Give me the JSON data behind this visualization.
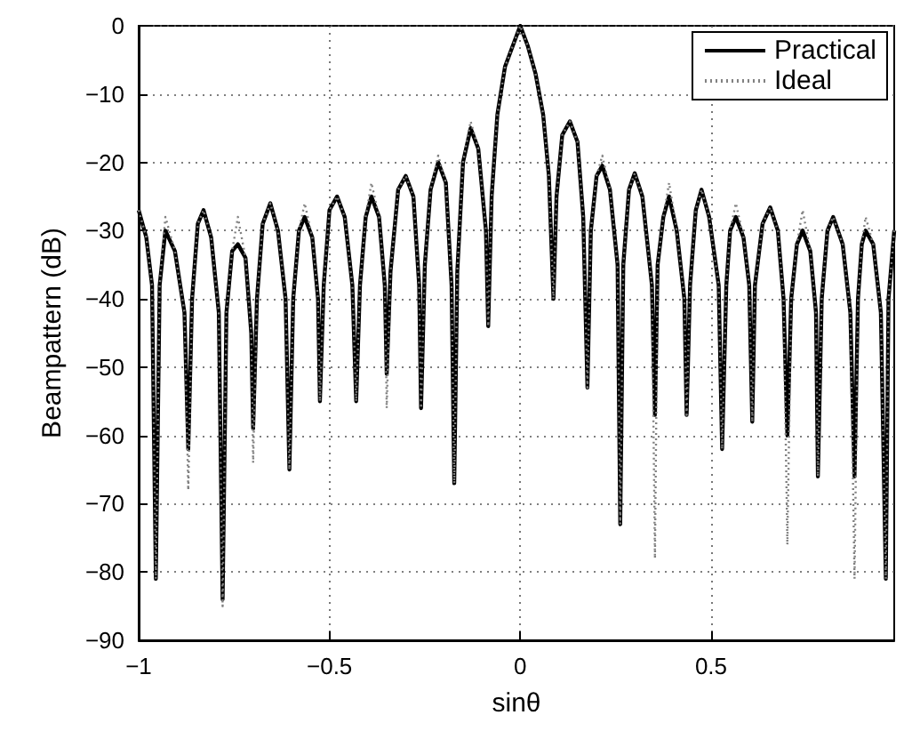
{
  "chart_data": {
    "type": "line",
    "xlabel": "sinθ",
    "ylabel": "Beampattern (dB)",
    "xlim": [
      -1,
      0.98
    ],
    "ylim": [
      -90,
      0
    ],
    "xticks": [
      -1,
      -0.5,
      0,
      0.5
    ],
    "yticks": [
      -90,
      -80,
      -70,
      -60,
      -50,
      -40,
      -30,
      -20,
      -10,
      0
    ],
    "grid": true,
    "legend": "top right",
    "marker": "none",
    "x": [
      -1,
      -0.98,
      -0.965,
      -0.955,
      -0.945,
      -0.93,
      -0.905,
      -0.88,
      -0.87,
      -0.86,
      -0.845,
      -0.83,
      -0.81,
      -0.79,
      -0.78,
      -0.77,
      -0.755,
      -0.74,
      -0.72,
      -0.705,
      -0.7,
      -0.69,
      -0.675,
      -0.655,
      -0.635,
      -0.615,
      -0.605,
      -0.595,
      -0.58,
      -0.565,
      -0.545,
      -0.53,
      -0.525,
      -0.515,
      -0.5,
      -0.48,
      -0.46,
      -0.44,
      -0.43,
      -0.42,
      -0.405,
      -0.39,
      -0.37,
      -0.355,
      -0.35,
      -0.34,
      -0.32,
      -0.3,
      -0.28,
      -0.265,
      -0.26,
      -0.25,
      -0.235,
      -0.215,
      -0.195,
      -0.18,
      -0.173,
      -0.165,
      -0.15,
      -0.13,
      -0.11,
      -0.09,
      -0.084,
      -0.075,
      -0.06,
      -0.04,
      -0.02,
      0,
      0.02,
      0.04,
      0.06,
      0.075,
      0.087,
      0.095,
      0.11,
      0.13,
      0.15,
      0.165,
      0.176,
      0.185,
      0.2,
      0.215,
      0.235,
      0.255,
      0.262,
      0.27,
      0.285,
      0.3,
      0.32,
      0.345,
      0.353,
      0.36,
      0.375,
      0.39,
      0.41,
      0.43,
      0.436,
      0.445,
      0.46,
      0.475,
      0.495,
      0.52,
      0.529,
      0.54,
      0.55,
      0.565,
      0.585,
      0.6,
      0.608,
      0.615,
      0.635,
      0.655,
      0.675,
      0.69,
      0.7,
      0.71,
      0.725,
      0.74,
      0.76,
      0.775,
      0.78,
      0.79,
      0.805,
      0.82,
      0.845,
      0.865,
      0.876,
      0.885,
      0.895,
      0.905,
      0.925,
      0.945,
      0.958,
      0.965,
      0.98
    ],
    "series": [
      {
        "name": "Ideal",
        "color": "#808080",
        "line_style": "dotted",
        "values": [
          -27,
          -31,
          -38,
          -81,
          -38,
          -28,
          -33,
          -42,
          -68,
          -40,
          -29,
          -27,
          -31,
          -42,
          -85,
          -42,
          -33,
          -28,
          -34,
          -45,
          -64,
          -40,
          -29,
          -26,
          -30,
          -40,
          -65,
          -40,
          -30,
          -26,
          -31,
          -40,
          -55,
          -38,
          -27,
          -25,
          -28,
          -38,
          -55,
          -38,
          -28,
          -23,
          -28,
          -38,
          -56,
          -36,
          -24,
          -22,
          -25,
          -38,
          -56,
          -35,
          -24,
          -19,
          -23,
          -38,
          -67,
          -36,
          -20,
          -14,
          -18,
          -30,
          -44,
          -25,
          -13,
          -6,
          -3,
          0,
          -3,
          -7,
          -13,
          -22,
          -40,
          -25,
          -16,
          -14,
          -17,
          -28,
          -53,
          -30,
          -22,
          -19,
          -24,
          -35,
          -73,
          -35,
          -24,
          -21.6,
          -25,
          -38,
          -78,
          -35,
          -28,
          -23,
          -30,
          -40,
          -57,
          -38,
          -27,
          -24,
          -28,
          -38,
          -62,
          -38,
          -30,
          -26,
          -31,
          -38,
          -58,
          -38,
          -29,
          -26.6,
          -30,
          -40,
          -76,
          -40,
          -32,
          -27,
          -33,
          -42,
          -66,
          -40,
          -30,
          -28,
          -32,
          -42,
          -81,
          -40,
          -32,
          -28,
          -32,
          -42,
          -81,
          -40,
          -30
        ]
      },
      {
        "name": "Practical",
        "color": "#000000",
        "line_style": "solid",
        "values": [
          -27,
          -31,
          -38,
          -81,
          -38,
          -30,
          -33,
          -42,
          -62,
          -40,
          -29,
          -27,
          -31,
          -42,
          -84,
          -42,
          -33,
          -32,
          -34,
          -45,
          -59,
          -40,
          -29,
          -26,
          -30,
          -40,
          -65,
          -40,
          -30,
          -28,
          -31,
          -40,
          -55,
          -38,
          -27,
          -25,
          -28,
          -38,
          -55,
          -38,
          -28,
          -25,
          -28,
          -38,
          -51,
          -36,
          -24,
          -22,
          -25,
          -38,
          -56,
          -35,
          -24,
          -20,
          -23,
          -38,
          -67,
          -36,
          -20,
          -15,
          -18,
          -30,
          -44,
          -25,
          -13,
          -6,
          -3,
          0,
          -3,
          -7,
          -13,
          -22,
          -40,
          -25,
          -16,
          -14,
          -17,
          -28,
          -53,
          -30,
          -22,
          -20.5,
          -24,
          -35,
          -73,
          -35,
          -24,
          -21.6,
          -25,
          -38,
          -57,
          -35,
          -28,
          -25,
          -30,
          -40,
          -57,
          -38,
          -27,
          -24,
          -28,
          -38,
          -62,
          -38,
          -30,
          -28,
          -31,
          -38,
          -58,
          -38,
          -29,
          -26.6,
          -30,
          -40,
          -60,
          -40,
          -32,
          -30,
          -33,
          -42,
          -66,
          -40,
          -30,
          -28,
          -32,
          -42,
          -66,
          -40,
          -32,
          -30,
          -32,
          -42,
          -81,
          -40,
          -30
        ]
      }
    ]
  }
}
